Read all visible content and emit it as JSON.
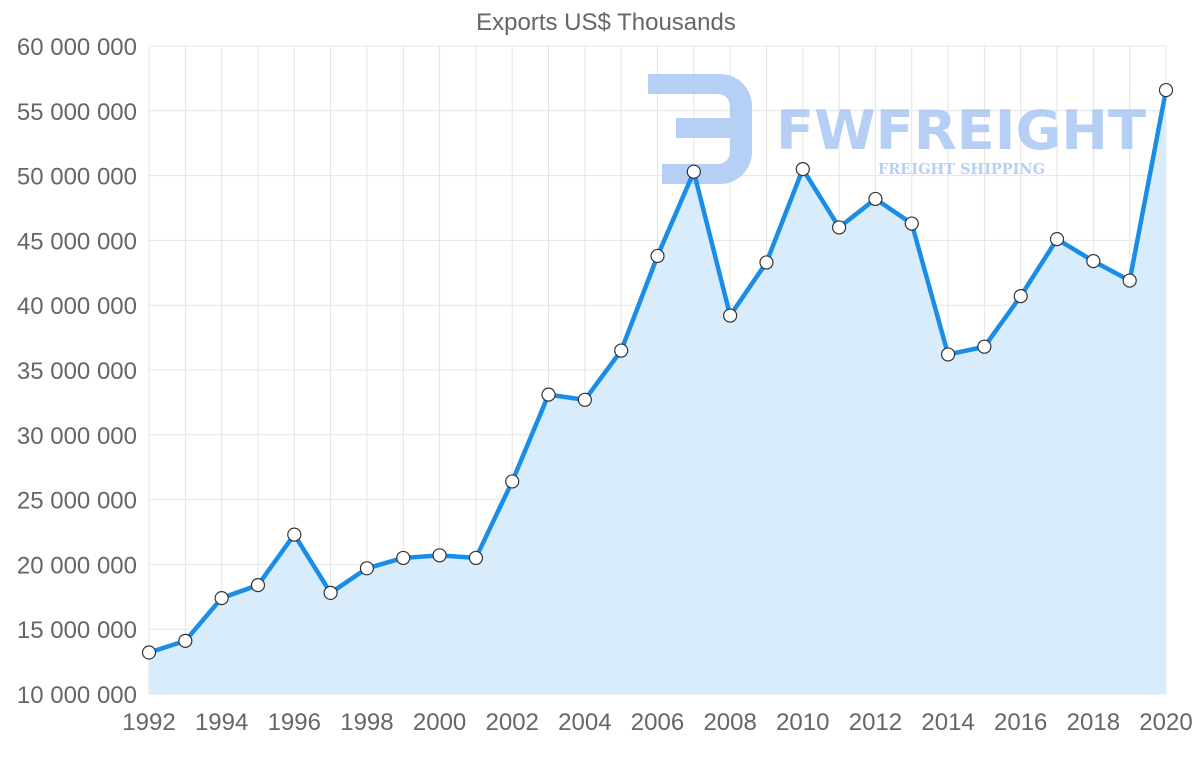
{
  "chart_data": {
    "type": "area",
    "title": "Exports US$ Thousands",
    "xlabel": "",
    "ylabel": "",
    "x": [
      1992,
      1993,
      1994,
      1995,
      1996,
      1997,
      1998,
      1999,
      2000,
      2001,
      2002,
      2003,
      2004,
      2005,
      2006,
      2007,
      2008,
      2009,
      2010,
      2011,
      2012,
      2013,
      2014,
      2015,
      2016,
      2017,
      2018,
      2019,
      2020
    ],
    "series": [
      {
        "name": "Exports US$ Thousands",
        "values": [
          13200000,
          14100000,
          17400000,
          18400000,
          22300000,
          17800000,
          19700000,
          20500000,
          20700000,
          20500000,
          26400000,
          33100000,
          32700000,
          36500000,
          43800000,
          50300000,
          39200000,
          43300000,
          50500000,
          46000000,
          48200000,
          46300000,
          36200000,
          36800000,
          40700000,
          45100000,
          43400000,
          41900000,
          56600000
        ]
      }
    ],
    "ylim": [
      10000000,
      60000000
    ],
    "yticks": [
      10000000,
      15000000,
      20000000,
      25000000,
      30000000,
      35000000,
      40000000,
      45000000,
      50000000,
      55000000,
      60000000
    ],
    "ytick_labels": [
      "10 000 000",
      "15 000 000",
      "20 000 000",
      "25 000 000",
      "30 000 000",
      "35 000 000",
      "40 000 000",
      "45 000 000",
      "50 000 000",
      "55 000 000",
      "60 000 000"
    ],
    "xtick_labels": [
      "1992",
      "1994",
      "1996",
      "1998",
      "2000",
      "2002",
      "2004",
      "2006",
      "2008",
      "2010",
      "2012",
      "2014",
      "2016",
      "2018",
      "2020"
    ],
    "grid": true,
    "colors": {
      "line": "#1a8de8",
      "fill": "#d9ecfc",
      "marker_fill": "#ffffff",
      "marker_stroke": "#333333"
    }
  },
  "watermark": {
    "brand": "FWFREIGHT",
    "tagline": "FREIGHT SHIPPING",
    "color": "#a9c8f3"
  }
}
